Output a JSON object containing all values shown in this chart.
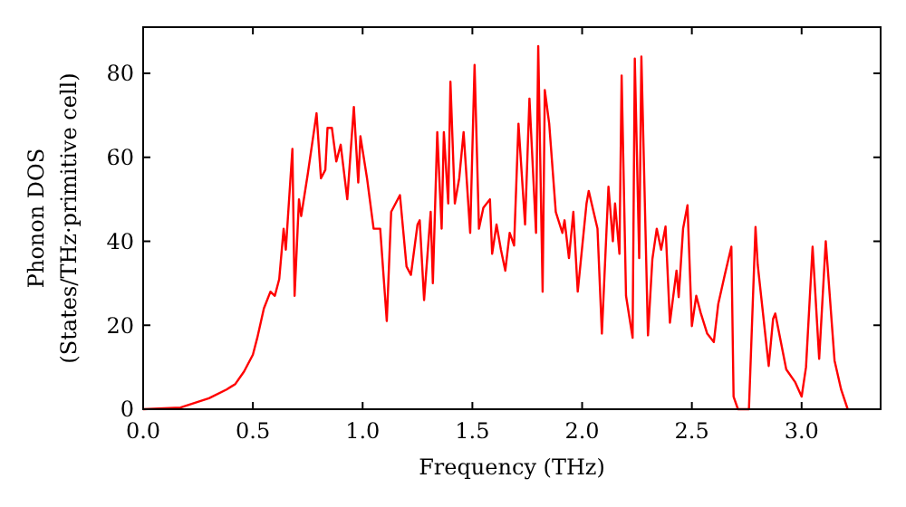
{
  "chart_data": {
    "type": "line",
    "xlabel": "Frequency (THz)",
    "ylabel": "Phonon DOS\n(States/THz·primitive cell)",
    "xlim": [
      0,
      3.36
    ],
    "ylim": [
      0,
      91
    ],
    "xticks": [
      {
        "value": 0,
        "label": "0.0"
      },
      {
        "value": 0.5,
        "label": "0.5"
      },
      {
        "value": 1,
        "label": "1.0"
      },
      {
        "value": 1.5,
        "label": "1.5"
      },
      {
        "value": 2,
        "label": "2.0"
      },
      {
        "value": 2.5,
        "label": "2.5"
      },
      {
        "value": 3,
        "label": "3.0"
      }
    ],
    "yticks": [
      0,
      20,
      40,
      60,
      80
    ],
    "grid": false,
    "series": [
      {
        "color": "#ff0000",
        "x": [
          0,
          0.17,
          0.3,
          0.38,
          0.42,
          0.46,
          0.5,
          0.52,
          0.55,
          0.58,
          0.6,
          0.62,
          0.64,
          0.65,
          0.68,
          0.69,
          0.71,
          0.72,
          0.75,
          0.79,
          0.81,
          0.83,
          0.84,
          0.86,
          0.88,
          0.9,
          0.93,
          0.96,
          0.98,
          0.99,
          1.02,
          1.05,
          1.08,
          1.11,
          1.13,
          1.17,
          1.2,
          1.22,
          1.25,
          1.26,
          1.28,
          1.31,
          1.32,
          1.34,
          1.36,
          1.37,
          1.39,
          1.4,
          1.42,
          1.44,
          1.46,
          1.49,
          1.51,
          1.53,
          1.55,
          1.58,
          1.59,
          1.61,
          1.63,
          1.65,
          1.67,
          1.69,
          1.71,
          1.74,
          1.76,
          1.79,
          1.8,
          1.82,
          1.83,
          1.85,
          1.88,
          1.91,
          1.92,
          1.94,
          1.96,
          1.98,
          2.02,
          2.03,
          2.07,
          2.09,
          2.12,
          2.14,
          2.15,
          2.17,
          2.18,
          2.2,
          2.23,
          2.24,
          2.26,
          2.27,
          2.3,
          2.32,
          2.34,
          2.36,
          2.38,
          2.4,
          2.43,
          2.44,
          2.46,
          2.48,
          2.5,
          2.52,
          2.54,
          2.57,
          2.6,
          2.62,
          2.65,
          2.68,
          2.69,
          2.71,
          2.76,
          2.79,
          2.8,
          2.85,
          2.87,
          2.88,
          2.93,
          2.97,
          3.0,
          3.02,
          3.05,
          3.08,
          3.11,
          3.15,
          3.18,
          3.21
        ],
        "values": [
          0,
          0.4,
          2.6,
          4.7,
          6,
          9,
          13,
          17,
          24,
          28,
          27,
          31,
          43,
          38,
          62,
          27,
          50,
          46,
          56,
          70.5,
          55,
          57,
          67,
          67,
          59,
          63,
          50,
          72,
          54,
          65,
          55,
          43,
          43,
          21,
          47,
          51,
          34,
          32,
          44,
          45,
          26,
          47,
          30,
          66,
          43,
          66,
          49,
          78,
          49,
          55,
          66,
          42,
          82,
          43,
          48,
          50,
          37,
          44,
          38,
          33,
          42,
          39,
          68,
          44,
          74,
          42,
          86.5,
          28,
          76,
          68,
          47,
          42,
          45,
          36,
          47,
          28,
          49,
          52,
          43,
          18,
          53,
          40,
          49,
          37,
          79.5,
          27,
          17,
          83.5,
          36,
          84,
          17.6,
          35.7,
          43,
          38,
          43.5,
          20.6,
          33,
          26.7,
          43,
          48.6,
          19.8,
          27,
          23,
          18,
          16,
          25,
          32,
          38.7,
          3,
          0,
          0,
          43.4,
          34.4,
          10.3,
          21.5,
          22.8,
          9.5,
          6.5,
          3,
          10,
          38.7,
          12,
          40,
          11.6,
          4.7,
          0
        ]
      }
    ]
  }
}
